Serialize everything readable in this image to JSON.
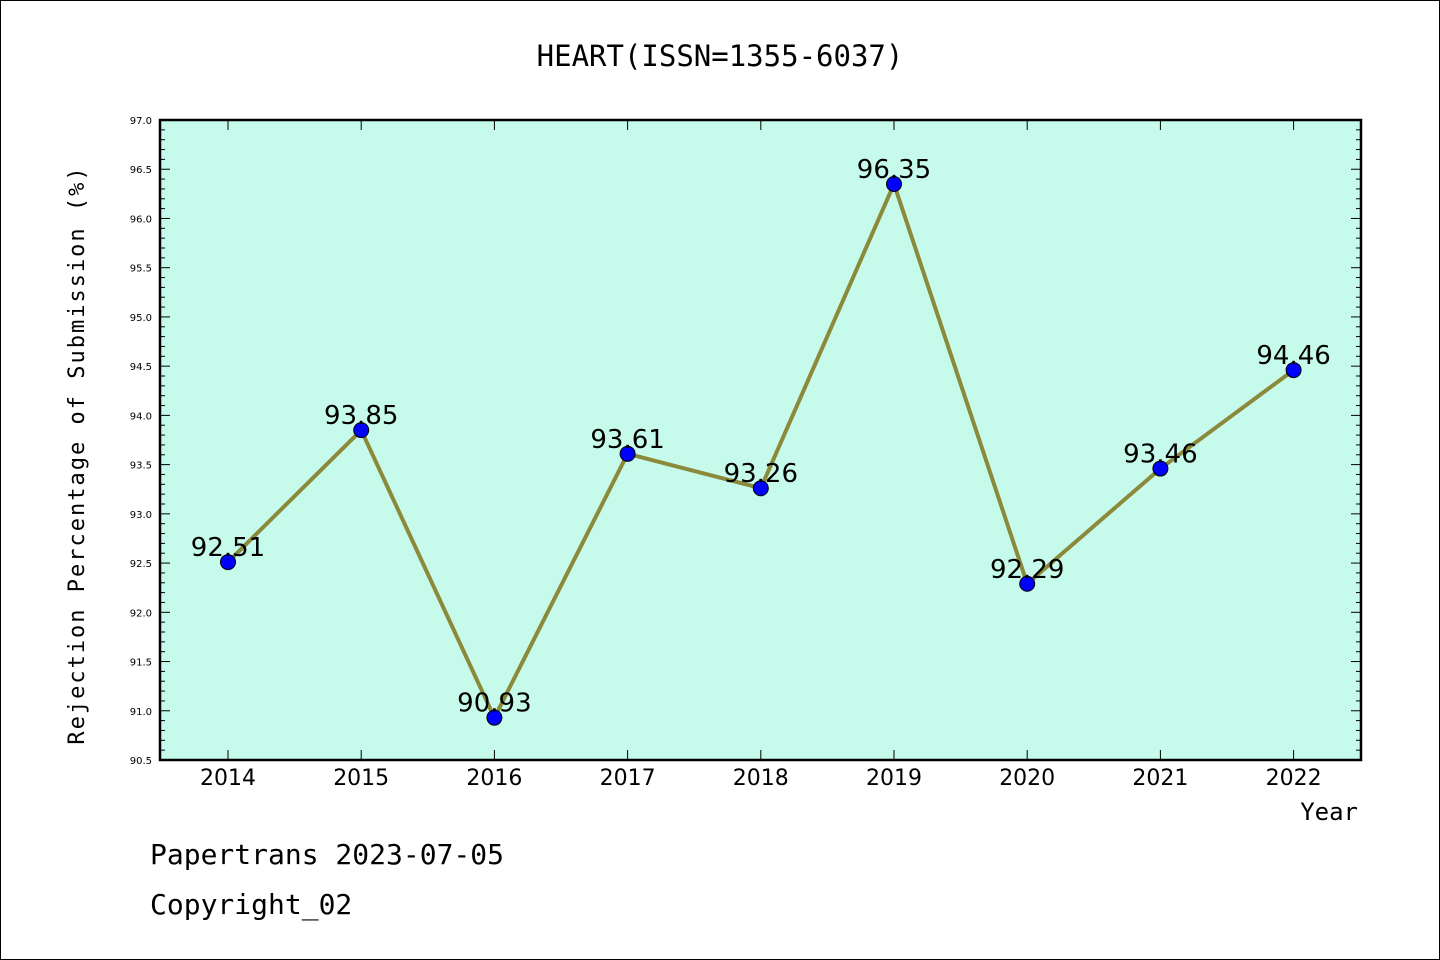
{
  "chart_data": {
    "type": "line",
    "title": "HEART(ISSN=1355-6037)",
    "xlabel": "Year",
    "ylabel": "Rejection Percentage of Submission (%)",
    "categories": [
      "2014",
      "2015",
      "2016",
      "2017",
      "2018",
      "2019",
      "2020",
      "2021",
      "2022"
    ],
    "series": [
      {
        "values": [
          92.51,
          93.85,
          90.93,
          93.61,
          93.26,
          96.35,
          92.29,
          93.46,
          94.46
        ]
      }
    ],
    "data_labels": [
      "92.51",
      "93.85",
      "90.93",
      "93.61",
      "93.26",
      "96.35",
      "92.29",
      "93.46",
      "94.46"
    ],
    "ylim": [
      90.5,
      97.0
    ],
    "yticks": [
      "90.5",
      "91.0",
      "91.5",
      "92.0",
      "92.5",
      "93.0",
      "93.5",
      "94.0",
      "94.5",
      "95.0",
      "95.5",
      "96.0",
      "96.5",
      "97.0"
    ],
    "grid": false,
    "legend": "none",
    "colors": {
      "plot_background": "#c6fbec",
      "line": "#8b8a3b",
      "marker": "#0000ff"
    }
  },
  "footer": {
    "line1": "Papertrans 2023-07-05",
    "line2": "Copyright_02"
  }
}
